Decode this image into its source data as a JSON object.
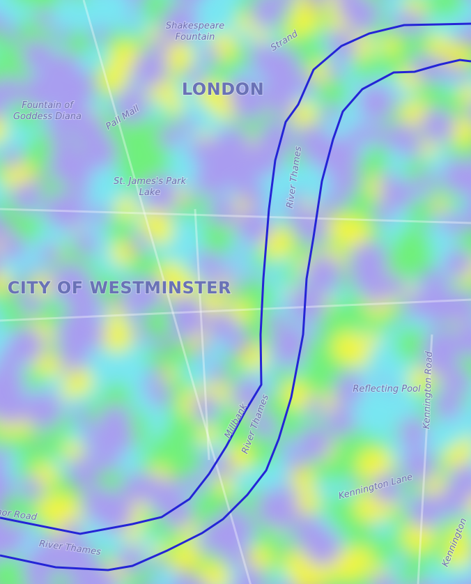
{
  "map": {
    "labels": [
      {
        "text": "Shakespeare"
      },
      {
        "text": "Fountain"
      },
      {
        "text": "Strand"
      },
      {
        "text": "LONDON"
      },
      {
        "text": "Fountain of"
      },
      {
        "text": "Goddess Diana"
      },
      {
        "text": "Pall Mall"
      },
      {
        "text": "St. James's Park"
      },
      {
        "text": "Lake"
      },
      {
        "text": "River Thames"
      },
      {
        "text": "CITY OF WESTMINSTER"
      },
      {
        "text": "Millbank"
      },
      {
        "text": "River Thames"
      },
      {
        "text": "Reflecting Pool"
      },
      {
        "text": "Kennington Road"
      },
      {
        "text": "Kennington Lane"
      },
      {
        "text": "Kennington"
      },
      {
        "text": "Grosvenor Road"
      },
      {
        "text": "River Thames"
      }
    ]
  }
}
